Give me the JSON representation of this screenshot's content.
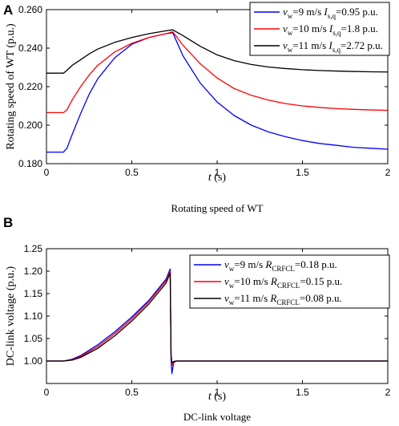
{
  "chart_data": [
    {
      "panel": "A",
      "type": "line",
      "caption": "Rotating speed of WT",
      "xlabel_var": "t",
      "xlabel_unit": " (s)",
      "ylabel": "Rotating speed of WT (p.u.)",
      "xlim": [
        0,
        2
      ],
      "ylim": [
        0.18,
        0.26
      ],
      "xticks": [
        0,
        0.5,
        1,
        1.5,
        2
      ],
      "yticks": [
        0.18,
        0.2,
        0.22,
        0.24,
        0.26
      ],
      "legend_position": "top-right",
      "series": [
        {
          "color": "#0000ff",
          "legend": {
            "v": "v",
            "vsub": "w",
            "mid": "=9 m/s ",
            "p": "I",
            "psub": "s,q",
            "tail": "=0.95 p.u."
          },
          "x": [
            0,
            0.1,
            0.12,
            0.15,
            0.2,
            0.25,
            0.3,
            0.4,
            0.5,
            0.6,
            0.7,
            0.74,
            0.8,
            0.9,
            1.0,
            1.1,
            1.2,
            1.3,
            1.4,
            1.5,
            1.6,
            1.7,
            1.8,
            1.9,
            2.0
          ],
          "y": [
            0.186,
            0.186,
            0.188,
            0.195,
            0.206,
            0.216,
            0.224,
            0.235,
            0.242,
            0.2455,
            0.2475,
            0.248,
            0.236,
            0.222,
            0.212,
            0.205,
            0.2,
            0.1965,
            0.194,
            0.192,
            0.1905,
            0.1895,
            0.1885,
            0.188,
            0.1875
          ]
        },
        {
          "color": "#ff0000",
          "legend": {
            "v": "v",
            "vsub": "w",
            "mid": "=10 m/s ",
            "p": "I",
            "psub": "s,q",
            "tail": "=1.8 p.u."
          },
          "x": [
            0,
            0.1,
            0.12,
            0.15,
            0.2,
            0.25,
            0.3,
            0.4,
            0.5,
            0.6,
            0.7,
            0.74,
            0.8,
            0.9,
            1.0,
            1.1,
            1.2,
            1.3,
            1.4,
            1.5,
            1.6,
            1.7,
            1.8,
            1.9,
            2.0
          ],
          "y": [
            0.2065,
            0.2065,
            0.208,
            0.213,
            0.22,
            0.226,
            0.231,
            0.238,
            0.2425,
            0.2455,
            0.2475,
            0.2485,
            0.2415,
            0.232,
            0.2245,
            0.219,
            0.2155,
            0.213,
            0.2112,
            0.21,
            0.2092,
            0.2086,
            0.2082,
            0.2079,
            0.2077
          ]
        },
        {
          "color": "#000000",
          "legend": {
            "v": "v",
            "vsub": "w",
            "mid": "=11 m/s ",
            "p": "I",
            "psub": "s,q",
            "tail": "=2.72 p.u."
          },
          "x": [
            0,
            0.1,
            0.12,
            0.15,
            0.2,
            0.25,
            0.3,
            0.4,
            0.5,
            0.6,
            0.7,
            0.74,
            0.8,
            0.9,
            1.0,
            1.1,
            1.2,
            1.3,
            1.4,
            1.5,
            1.6,
            1.7,
            1.8,
            1.9,
            2.0
          ],
          "y": [
            0.227,
            0.227,
            0.2285,
            0.231,
            0.234,
            0.237,
            0.2395,
            0.243,
            0.2455,
            0.2475,
            0.249,
            0.2495,
            0.2465,
            0.241,
            0.2365,
            0.2335,
            0.2315,
            0.2302,
            0.2294,
            0.2288,
            0.2284,
            0.2281,
            0.2279,
            0.2277,
            0.2276
          ]
        }
      ]
    },
    {
      "panel": "B",
      "type": "line",
      "caption": "DC-link voltage",
      "xlabel_var": "t",
      "xlabel_unit": " (s)",
      "ylabel": "DC-link voltage (p.u.)",
      "xlim": [
        0,
        2
      ],
      "ylim": [
        0.95,
        1.25
      ],
      "xticks": [
        0,
        0.5,
        1,
        1.5,
        2
      ],
      "yticks": [
        1,
        1.05,
        1.1,
        1.15,
        1.2,
        1.25
      ],
      "legend_position": "top-right",
      "series": [
        {
          "color": "#0000ff",
          "legend": {
            "v": "v",
            "vsub": "w",
            "mid": "=9 m/s ",
            "p": "R",
            "psub": "CRFCL",
            "tail": "=0.18 p.u."
          },
          "x": [
            0,
            0.1,
            0.15,
            0.2,
            0.3,
            0.4,
            0.5,
            0.6,
            0.7,
            0.725,
            0.73,
            0.735,
            0.745,
            0.76,
            0.8,
            0.9,
            1.0,
            1.5,
            2.0
          ],
          "y": [
            1.0,
            1.0,
            1.004,
            1.012,
            1.036,
            1.065,
            1.098,
            1.135,
            1.182,
            1.205,
            1.002,
            0.972,
            0.996,
            1.0,
            1.0,
            1.0,
            1.0,
            1.0,
            1.0
          ]
        },
        {
          "color": "#ff0000",
          "legend": {
            "v": "v",
            "vsub": "w",
            "mid": "=10 m/s ",
            "p": "R",
            "psub": "CRFCL",
            "tail": "=0.15 p.u."
          },
          "x": [
            0,
            0.1,
            0.15,
            0.2,
            0.3,
            0.4,
            0.5,
            0.6,
            0.7,
            0.725,
            0.73,
            0.735,
            0.745,
            0.76,
            0.8,
            0.9,
            1.0,
            1.5,
            2.0
          ],
          "y": [
            1.0,
            1.0,
            1.003,
            1.01,
            1.032,
            1.061,
            1.094,
            1.132,
            1.178,
            1.2,
            1.012,
            0.99,
            0.998,
            1.0,
            1.0,
            1.0,
            1.0,
            1.0,
            1.0
          ]
        },
        {
          "color": "#000000",
          "legend": {
            "v": "v",
            "vsub": "w",
            "mid": "=11 m/s ",
            "p": "R",
            "psub": "CRFCL",
            "tail": "=0.08 p.u."
          },
          "x": [
            0,
            0.1,
            0.15,
            0.2,
            0.3,
            0.4,
            0.5,
            0.6,
            0.7,
            0.725,
            0.73,
            0.735,
            0.745,
            0.76,
            0.8,
            0.9,
            1.0,
            1.5,
            2.0
          ],
          "y": [
            1.0,
            1.0,
            1.002,
            1.008,
            1.028,
            1.056,
            1.089,
            1.127,
            1.173,
            1.196,
            1.015,
            0.996,
            0.999,
            1.0,
            1.0,
            1.0,
            1.0,
            1.0,
            1.0
          ]
        }
      ]
    }
  ]
}
